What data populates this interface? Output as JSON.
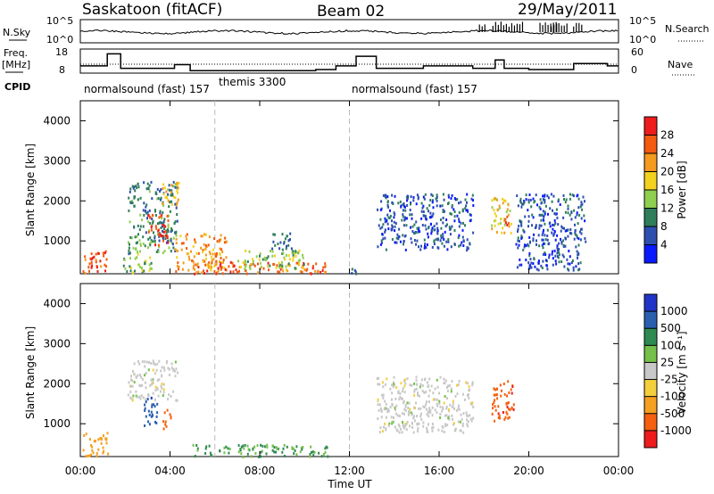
{
  "header": {
    "station": "Saskatoon (fitACF)",
    "beam": "Beam 02",
    "date": "29/May/2011"
  },
  "strips": {
    "nsky_label": "N.Sky",
    "nsky_ticks": [
      "10^5",
      "10^0"
    ],
    "nsearch_label": "N.Search",
    "nsearch_ticks": [
      "10^5",
      "10^0"
    ],
    "freq_label": "Freq.",
    "freq_unit": "[MHz]",
    "freq_ticks": [
      "18",
      "8"
    ],
    "nave_label": "Nave",
    "nave_ticks": [
      "60",
      "0"
    ],
    "cpid_label": "CPID",
    "cpid_segments": [
      "normalsound (fast) 157",
      "themis 3300",
      "normalsound (fast) 157"
    ]
  },
  "x_axis": {
    "label": "Time UT",
    "ticks": [
      "00:00",
      "04:00",
      "08:00",
      "12:00",
      "16:00",
      "20:00",
      "00:00"
    ]
  },
  "panels": [
    {
      "ylabel": "Slant Range [km]",
      "yticks": [
        "1000",
        "2000",
        "3000",
        "4000"
      ],
      "colorbar_label": "Power [dB]",
      "colorbar_ticks": [
        "4",
        "8",
        "12",
        "16",
        "20",
        "24",
        "28"
      ],
      "colorbar_colors": [
        "#0a1aff",
        "#2c4fb0",
        "#2f7d5b",
        "#8fcf4f",
        "#f2d21e",
        "#f49a1e",
        "#f45a10",
        "#ee1c1c"
      ]
    },
    {
      "ylabel": "Slant Range [km]",
      "yticks": [
        "1000",
        "2000",
        "3000",
        "4000"
      ],
      "colorbar_label": "Velocity [m s⁻¹]",
      "colorbar_ticks": [
        "1000",
        "500",
        "100",
        "25",
        "-25",
        "-100",
        "-500",
        "-1000"
      ],
      "colorbar_colors": [
        "#2035c8",
        "#2a5fb0",
        "#2f8a52",
        "#74c04b",
        "#c8c8c8",
        "#f4cf3c",
        "#f4a020",
        "#f46010",
        "#ee1c1c"
      ]
    }
  ],
  "chart_data": {
    "type": "heatmap",
    "title": "Saskatoon (fitACF) Beam 02 29/May/2011",
    "xlabel": "Time UT",
    "ylabel": "Slant Range [km]",
    "xlim_hours": [
      0,
      24
    ],
    "ylim_km": [
      180,
      4500
    ],
    "x_tick_hours": [
      0,
      4,
      8,
      12,
      16,
      20,
      24
    ],
    "y_ticks_km": [
      1000,
      2000,
      3000,
      4000
    ],
    "cpid_boundaries_hours": [
      6,
      12
    ],
    "freq_mhz_steps": [
      {
        "t0": 0,
        "t1": 1.2,
        "f": 11
      },
      {
        "t0": 1.2,
        "t1": 1.8,
        "f": 16
      },
      {
        "t0": 1.8,
        "t1": 4.2,
        "f": 10
      },
      {
        "t0": 4.2,
        "t1": 4.9,
        "f": 11.5
      },
      {
        "t0": 4.9,
        "t1": 10.5,
        "f": 9
      },
      {
        "t0": 10.5,
        "t1": 11.4,
        "f": 9.5
      },
      {
        "t0": 11.4,
        "t1": 12.3,
        "f": 11
      },
      {
        "t0": 12.3,
        "t1": 13.2,
        "f": 15
      },
      {
        "t0": 13.2,
        "t1": 15.3,
        "f": 10
      },
      {
        "t0": 15.3,
        "t1": 17.5,
        "f": 11
      },
      {
        "t0": 17.5,
        "t1": 18.5,
        "f": 10
      },
      {
        "t0": 18.5,
        "t1": 18.9,
        "f": 13.5
      },
      {
        "t0": 18.9,
        "t1": 20.0,
        "f": 10
      },
      {
        "t0": 20.0,
        "t1": 22.0,
        "f": 9.5
      },
      {
        "t0": 22.0,
        "t1": 23.5,
        "f": 12
      },
      {
        "t0": 23.5,
        "t1": 24,
        "f": 11
      }
    ],
    "power_regions_db": [
      {
        "t0": 0.1,
        "t1": 1.2,
        "r0": 220,
        "r1": 800,
        "power": 26
      },
      {
        "t0": 1.9,
        "t1": 3.2,
        "r0": 230,
        "r1": 700,
        "power": 14
      },
      {
        "t0": 2.1,
        "t1": 4.3,
        "r0": 700,
        "r1": 2500,
        "power": 10
      },
      {
        "t0": 3.0,
        "t1": 3.9,
        "r0": 900,
        "r1": 1700,
        "power": 28
      },
      {
        "t0": 3.6,
        "t1": 4.4,
        "r0": 1900,
        "r1": 2500,
        "power": 20
      },
      {
        "t0": 4.2,
        "t1": 6.5,
        "r0": 230,
        "r1": 1200,
        "power": 22
      },
      {
        "t0": 5.0,
        "t1": 11.0,
        "r0": 200,
        "r1": 500,
        "power": 26
      },
      {
        "t0": 7.0,
        "t1": 10.0,
        "r0": 300,
        "r1": 800,
        "power": 14
      },
      {
        "t0": 8.5,
        "t1": 9.4,
        "r0": 800,
        "r1": 1300,
        "power": 8
      },
      {
        "t0": 12.0,
        "t1": 12.5,
        "r0": 200,
        "r1": 400,
        "power": 8
      },
      {
        "t0": 13.2,
        "t1": 17.5,
        "r0": 800,
        "r1": 2200,
        "power": 6
      },
      {
        "t0": 18.3,
        "t1": 19.2,
        "r0": 1200,
        "r1": 2100,
        "power": 18
      },
      {
        "t0": 18.8,
        "t1": 19.1,
        "r0": 1400,
        "r1": 1700,
        "power": 26
      },
      {
        "t0": 19.4,
        "t1": 22.5,
        "r0": 300,
        "r1": 2200,
        "power": 6
      }
    ],
    "velocity_regions_ms": [
      {
        "t0": 0.1,
        "t1": 1.2,
        "r0": 220,
        "r1": 800,
        "velocity": -150
      },
      {
        "t0": 2.1,
        "t1": 4.3,
        "r0": 1600,
        "r1": 2600,
        "velocity": 0
      },
      {
        "t0": 2.8,
        "t1": 3.4,
        "r0": 900,
        "r1": 1700,
        "velocity": 600
      },
      {
        "t0": 3.6,
        "t1": 4.0,
        "r0": 900,
        "r1": 1400,
        "velocity": -400
      },
      {
        "t0": 5.0,
        "t1": 11.0,
        "r0": 200,
        "r1": 500,
        "velocity": 60
      },
      {
        "t0": 13.2,
        "t1": 17.5,
        "r0": 800,
        "r1": 2200,
        "velocity": 0
      },
      {
        "t0": 18.3,
        "t1": 19.3,
        "r0": 1100,
        "r1": 2100,
        "velocity": -600
      }
    ]
  }
}
